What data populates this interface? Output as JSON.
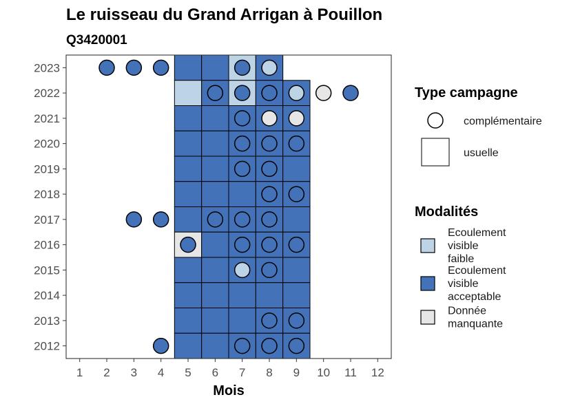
{
  "chart_data": {
    "type": "heatmap",
    "title": "Le ruisseau du Grand Arrigan à Pouillon",
    "subtitle": "Q3420001",
    "xlabel": "Mois",
    "ylabel": "",
    "x_ticks": [
      "1",
      "2",
      "3",
      "4",
      "5",
      "6",
      "7",
      "8",
      "9",
      "10",
      "11",
      "12"
    ],
    "y_ticks": [
      "2023",
      "2022",
      "2021",
      "2020",
      "2019",
      "2018",
      "2017",
      "2016",
      "2015",
      "2014",
      "2013",
      "2012"
    ],
    "xlim": [
      0.5,
      12.5
    ],
    "ylim": [
      2011.5,
      2023.5
    ],
    "legend_type_title": "Type campagne",
    "legend_type_entries": [
      {
        "key": "complementaire",
        "label": "complémentaire",
        "shape": "circle"
      },
      {
        "key": "usuelle",
        "label": "usuelle",
        "shape": "square"
      }
    ],
    "legend_mod_title": "Modalités",
    "legend_mod_entries": [
      {
        "key": "faible",
        "lines": [
          "Ecoulement",
          "visible",
          "faible"
        ],
        "color": "#bcd4e6"
      },
      {
        "key": "acceptable",
        "lines": [
          "Ecoulement",
          "visible",
          "acceptable"
        ],
        "color": "#4472b8"
      },
      {
        "key": "manquante",
        "lines": [
          "Donnée",
          "manquante"
        ],
        "color": "#e6e6e6"
      }
    ],
    "usuelle": [
      {
        "year": 2023,
        "month": 5,
        "m": "acceptable"
      },
      {
        "year": 2023,
        "month": 6,
        "m": "acceptable"
      },
      {
        "year": 2023,
        "month": 7,
        "m": "faible"
      },
      {
        "year": 2023,
        "month": 8,
        "m": "acceptable"
      },
      {
        "year": 2022,
        "month": 5,
        "m": "faible"
      },
      {
        "year": 2022,
        "month": 6,
        "m": "acceptable"
      },
      {
        "year": 2022,
        "month": 7,
        "m": "faible"
      },
      {
        "year": 2022,
        "month": 8,
        "m": "acceptable"
      },
      {
        "year": 2022,
        "month": 9,
        "m": "acceptable"
      },
      {
        "year": 2021,
        "month": 5,
        "m": "acceptable"
      },
      {
        "year": 2021,
        "month": 6,
        "m": "acceptable"
      },
      {
        "year": 2021,
        "month": 7,
        "m": "acceptable"
      },
      {
        "year": 2021,
        "month": 8,
        "m": "acceptable"
      },
      {
        "year": 2021,
        "month": 9,
        "m": "acceptable"
      },
      {
        "year": 2020,
        "month": 5,
        "m": "acceptable"
      },
      {
        "year": 2020,
        "month": 6,
        "m": "acceptable"
      },
      {
        "year": 2020,
        "month": 7,
        "m": "acceptable"
      },
      {
        "year": 2020,
        "month": 8,
        "m": "acceptable"
      },
      {
        "year": 2020,
        "month": 9,
        "m": "acceptable"
      },
      {
        "year": 2019,
        "month": 5,
        "m": "acceptable"
      },
      {
        "year": 2019,
        "month": 6,
        "m": "acceptable"
      },
      {
        "year": 2019,
        "month": 7,
        "m": "acceptable"
      },
      {
        "year": 2019,
        "month": 8,
        "m": "acceptable"
      },
      {
        "year": 2019,
        "month": 9,
        "m": "acceptable"
      },
      {
        "year": 2018,
        "month": 5,
        "m": "acceptable"
      },
      {
        "year": 2018,
        "month": 6,
        "m": "acceptable"
      },
      {
        "year": 2018,
        "month": 7,
        "m": "acceptable"
      },
      {
        "year": 2018,
        "month": 8,
        "m": "acceptable"
      },
      {
        "year": 2018,
        "month": 9,
        "m": "acceptable"
      },
      {
        "year": 2017,
        "month": 5,
        "m": "acceptable"
      },
      {
        "year": 2017,
        "month": 6,
        "m": "acceptable"
      },
      {
        "year": 2017,
        "month": 7,
        "m": "acceptable"
      },
      {
        "year": 2017,
        "month": 8,
        "m": "acceptable"
      },
      {
        "year": 2017,
        "month": 9,
        "m": "acceptable"
      },
      {
        "year": 2016,
        "month": 5,
        "m": "manquante"
      },
      {
        "year": 2016,
        "month": 6,
        "m": "acceptable"
      },
      {
        "year": 2016,
        "month": 7,
        "m": "acceptable"
      },
      {
        "year": 2016,
        "month": 8,
        "m": "acceptable"
      },
      {
        "year": 2016,
        "month": 9,
        "m": "acceptable"
      },
      {
        "year": 2015,
        "month": 5,
        "m": "acceptable"
      },
      {
        "year": 2015,
        "month": 6,
        "m": "acceptable"
      },
      {
        "year": 2015,
        "month": 7,
        "m": "acceptable"
      },
      {
        "year": 2015,
        "month": 8,
        "m": "acceptable"
      },
      {
        "year": 2015,
        "month": 9,
        "m": "acceptable"
      },
      {
        "year": 2014,
        "month": 5,
        "m": "acceptable"
      },
      {
        "year": 2014,
        "month": 6,
        "m": "acceptable"
      },
      {
        "year": 2014,
        "month": 7,
        "m": "acceptable"
      },
      {
        "year": 2014,
        "month": 8,
        "m": "acceptable"
      },
      {
        "year": 2014,
        "month": 9,
        "m": "acceptable"
      },
      {
        "year": 2013,
        "month": 5,
        "m": "acceptable"
      },
      {
        "year": 2013,
        "month": 6,
        "m": "acceptable"
      },
      {
        "year": 2013,
        "month": 7,
        "m": "acceptable"
      },
      {
        "year": 2013,
        "month": 8,
        "m": "acceptable"
      },
      {
        "year": 2013,
        "month": 9,
        "m": "acceptable"
      },
      {
        "year": 2012,
        "month": 5,
        "m": "acceptable"
      },
      {
        "year": 2012,
        "month": 6,
        "m": "acceptable"
      },
      {
        "year": 2012,
        "month": 7,
        "m": "acceptable"
      },
      {
        "year": 2012,
        "month": 8,
        "m": "acceptable"
      },
      {
        "year": 2012,
        "month": 9,
        "m": "acceptable"
      }
    ],
    "complementaire": [
      {
        "year": 2023,
        "month": 2,
        "m": "acceptable"
      },
      {
        "year": 2023,
        "month": 3,
        "m": "acceptable"
      },
      {
        "year": 2023,
        "month": 4,
        "m": "acceptable"
      },
      {
        "year": 2023,
        "month": 7,
        "m": "acceptable"
      },
      {
        "year": 2023,
        "month": 8,
        "m": "faible"
      },
      {
        "year": 2022,
        "month": 6,
        "m": "acceptable"
      },
      {
        "year": 2022,
        "month": 7,
        "m": "acceptable"
      },
      {
        "year": 2022,
        "month": 8,
        "m": "acceptable"
      },
      {
        "year": 2022,
        "month": 9,
        "m": "faible"
      },
      {
        "year": 2022,
        "month": 10,
        "m": "manquante"
      },
      {
        "year": 2022,
        "month": 11,
        "m": "acceptable"
      },
      {
        "year": 2021,
        "month": 7,
        "m": "acceptable"
      },
      {
        "year": 2021,
        "month": 8,
        "m": "manquante"
      },
      {
        "year": 2021,
        "month": 9,
        "m": "manquante"
      },
      {
        "year": 2020,
        "month": 7,
        "m": "acceptable"
      },
      {
        "year": 2020,
        "month": 8,
        "m": "acceptable"
      },
      {
        "year": 2020,
        "month": 9,
        "m": "acceptable"
      },
      {
        "year": 2019,
        "month": 7,
        "m": "acceptable"
      },
      {
        "year": 2019,
        "month": 8,
        "m": "acceptable"
      },
      {
        "year": 2018,
        "month": 8,
        "m": "acceptable"
      },
      {
        "year": 2018,
        "month": 9,
        "m": "acceptable"
      },
      {
        "year": 2017,
        "month": 3,
        "m": "acceptable"
      },
      {
        "year": 2017,
        "month": 4,
        "m": "acceptable"
      },
      {
        "year": 2017,
        "month": 6,
        "m": "acceptable"
      },
      {
        "year": 2017,
        "month": 7,
        "m": "acceptable"
      },
      {
        "year": 2017,
        "month": 8,
        "m": "acceptable"
      },
      {
        "year": 2016,
        "month": 5,
        "m": "acceptable"
      },
      {
        "year": 2016,
        "month": 7,
        "m": "acceptable"
      },
      {
        "year": 2016,
        "month": 8,
        "m": "acceptable"
      },
      {
        "year": 2016,
        "month": 9,
        "m": "acceptable"
      },
      {
        "year": 2015,
        "month": 7,
        "m": "faible"
      },
      {
        "year": 2015,
        "month": 8,
        "m": "acceptable"
      },
      {
        "year": 2013,
        "month": 8,
        "m": "acceptable"
      },
      {
        "year": 2013,
        "month": 9,
        "m": "acceptable"
      },
      {
        "year": 2012,
        "month": 4,
        "m": "acceptable"
      },
      {
        "year": 2012,
        "month": 7,
        "m": "acceptable"
      },
      {
        "year": 2012,
        "month": 8,
        "m": "acceptable"
      },
      {
        "year": 2012,
        "month": 9,
        "m": "acceptable"
      }
    ]
  }
}
